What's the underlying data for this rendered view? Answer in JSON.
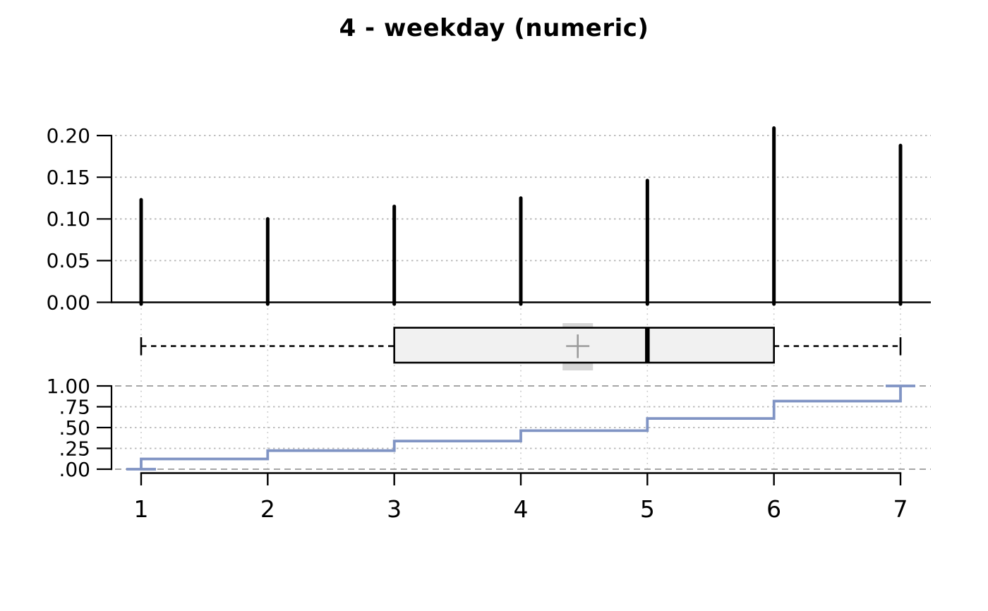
{
  "title": "4 - weekday (numeric)",
  "x_axis": {
    "ticks": [
      1,
      2,
      3,
      4,
      5,
      6,
      7
    ],
    "labels": [
      "1",
      "2",
      "3",
      "4",
      "5",
      "6",
      "7"
    ]
  },
  "chart_data": [
    {
      "panel": "pmf-spikes",
      "type": "line",
      "subtype": "vertical-spike-plot",
      "x": [
        1,
        2,
        3,
        4,
        5,
        6,
        7
      ],
      "values": [
        0.123,
        0.1,
        0.115,
        0.125,
        0.146,
        0.209,
        0.188
      ],
      "ylim": [
        0.0,
        0.21
      ],
      "yticks": [
        0.0,
        0.05,
        0.1,
        0.15,
        0.2
      ],
      "ytick_labels": [
        "0.00",
        "0.05",
        "0.10",
        "0.15",
        "0.20"
      ],
      "grid": "horizontal dotted"
    },
    {
      "panel": "boxplot",
      "type": "boxplot",
      "orientation": "horizontal",
      "whisker_low": 1,
      "q1": 3,
      "median": 5,
      "q3": 6,
      "whisker_high": 7,
      "mean": 4.45,
      "mean_band": [
        4.33,
        4.57
      ]
    },
    {
      "panel": "ecdf",
      "type": "line",
      "subtype": "step-ecdf",
      "x": [
        1,
        2,
        3,
        4,
        5,
        6,
        7
      ],
      "cumulative": [
        0.123,
        0.223,
        0.338,
        0.463,
        0.609,
        0.818,
        1.0
      ],
      "ylim": [
        0.0,
        1.0
      ],
      "yticks": [
        1.0,
        0.75,
        0.5,
        0.25,
        0.0
      ],
      "ytick_labels": [
        "1.00",
        ".75",
        ".50",
        ".25",
        ".00"
      ],
      "grid": "dashed at 0 and 1, dotted at quartiles"
    }
  ],
  "colors": {
    "spike": "#000000",
    "ecdf_line": "#8094c4",
    "box_fill": "#f1f1f1",
    "box_border": "#000000",
    "median": "#000000",
    "mean_marker": "#9b9b9b",
    "mean_band": "#d7d7d7",
    "whisker": "#000000",
    "grid_dotted": "#b6b6b6",
    "grid_dashed": "#a6a6a6",
    "grid_vertical": "#cacaca",
    "axis": "#000000",
    "background": "#ffffff",
    "title": "#000000"
  }
}
